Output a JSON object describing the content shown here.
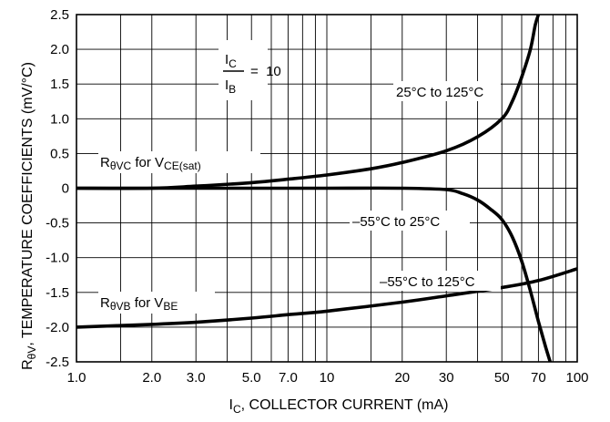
{
  "chart_data": {
    "type": "line",
    "xlabel": {
      "main": "I",
      "sub": "C",
      "rest": ", COLLECTOR CURRENT (mA)"
    },
    "ylabel": {
      "main": "R",
      "sub": "θV",
      "rest": ", TEMPERATURE COEFFICIENTS (mV/°C)"
    },
    "x_scale": "log",
    "xlim": [
      1.0,
      100
    ],
    "ylim": [
      -2.5,
      2.5
    ],
    "grid": true,
    "x_ticks": [
      {
        "value": 1.0,
        "label": "1.0"
      },
      {
        "value": 2.0,
        "label": "2.0"
      },
      {
        "value": 3.0,
        "label": "3.0"
      },
      {
        "value": 5.0,
        "label": "5.0"
      },
      {
        "value": 7.0,
        "label": "7.0"
      },
      {
        "value": 10,
        "label": "10"
      },
      {
        "value": 20,
        "label": "20"
      },
      {
        "value": 30,
        "label": "30"
      },
      {
        "value": 50,
        "label": "50"
      },
      {
        "value": 70,
        "label": "70"
      },
      {
        "value": 100,
        "label": "100"
      }
    ],
    "x_grid": [
      1,
      1.5,
      2,
      3,
      4,
      5,
      6,
      7,
      8,
      9,
      10,
      15,
      20,
      30,
      40,
      50,
      60,
      70,
      80,
      90,
      100
    ],
    "y_ticks": [
      {
        "value": 2.5,
        "label": "2.5"
      },
      {
        "value": 2.0,
        "label": "2.0"
      },
      {
        "value": 1.5,
        "label": "1.5"
      },
      {
        "value": 1.0,
        "label": "1.0"
      },
      {
        "value": 0.5,
        "label": "0.5"
      },
      {
        "value": 0,
        "label": "0"
      },
      {
        "value": -0.5,
        "label": "-0.5"
      },
      {
        "value": -1.0,
        "label": "-1.0"
      },
      {
        "value": -1.5,
        "label": "-1.5"
      },
      {
        "value": -2.0,
        "label": "-2.0"
      },
      {
        "value": -2.5,
        "label": "-2.5"
      }
    ],
    "series": [
      {
        "name": "25°C to 125°C",
        "x": [
          1.0,
          2.0,
          3.0,
          5.0,
          7.0,
          10,
          15,
          20,
          30,
          40,
          50,
          55,
          60,
          65,
          68,
          70
        ],
        "y": [
          0.0,
          0.0,
          0.03,
          0.08,
          0.13,
          0.19,
          0.28,
          0.37,
          0.54,
          0.74,
          1.0,
          1.25,
          1.6,
          2.0,
          2.35,
          2.5
        ]
      },
      {
        "name": "-55°C to 25°C",
        "x": [
          1.0,
          5.0,
          10,
          20,
          30,
          35,
          40,
          45,
          50,
          55,
          60,
          65,
          70,
          75,
          78
        ],
        "y": [
          0.0,
          0.0,
          0.0,
          0.0,
          -0.02,
          -0.08,
          -0.17,
          -0.3,
          -0.45,
          -0.7,
          -1.05,
          -1.48,
          -1.92,
          -2.3,
          -2.5
        ]
      },
      {
        "name": "-55°C to 125°C",
        "x": [
          1.0,
          2.0,
          3.0,
          5.0,
          7.0,
          10,
          20,
          30,
          50,
          70,
          100
        ],
        "y": [
          -2.0,
          -1.96,
          -1.93,
          -1.87,
          -1.82,
          -1.77,
          -1.64,
          -1.55,
          -1.43,
          -1.33,
          -1.16
        ]
      }
    ],
    "annotations": {
      "ratio_top": {
        "main": "I",
        "sub": "C"
      },
      "ratio_bottom": {
        "main": "I",
        "sub": "B"
      },
      "ratio_value": "=  10",
      "rvc_label": {
        "main": "R",
        "sub": "θVC",
        "mid": " for V",
        "sub2": "CE(sat)"
      },
      "rvb_label": {
        "main": "R",
        "sub": "θVB",
        "mid": " for V",
        "sub2": "BE"
      },
      "curve_25_125": "25°C to 125°C",
      "curve_m55_25": "–55°C to 25°C",
      "curve_m55_125": "–55°C to 125°C"
    }
  }
}
